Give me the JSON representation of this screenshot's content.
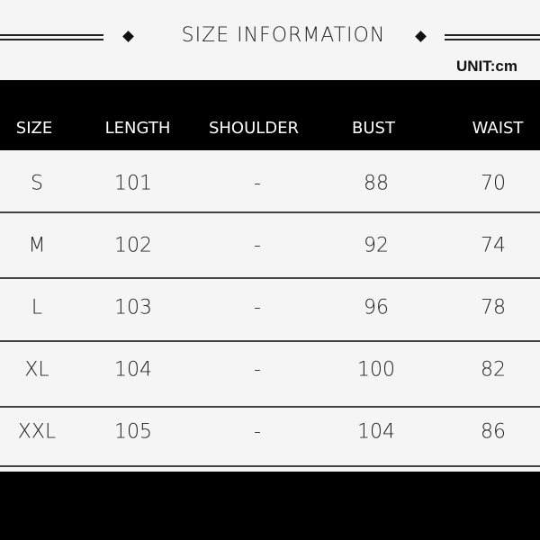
{
  "title": "SIZE INFORMATION",
  "unit": "UNIT:cm",
  "columns": [
    "SIZE",
    "LENGTH",
    "SHOULDER",
    "BUST",
    "WAIST"
  ],
  "rows": [
    [
      "S",
      "101",
      "-",
      "88",
      "70"
    ],
    [
      "M",
      "102",
      "-",
      "92",
      "74"
    ],
    [
      "L",
      "103",
      "-",
      "96",
      "78"
    ],
    [
      "XL",
      "104",
      "-",
      "100",
      "82"
    ],
    [
      "XXL",
      "105",
      "-",
      "104",
      "86"
    ]
  ]
}
